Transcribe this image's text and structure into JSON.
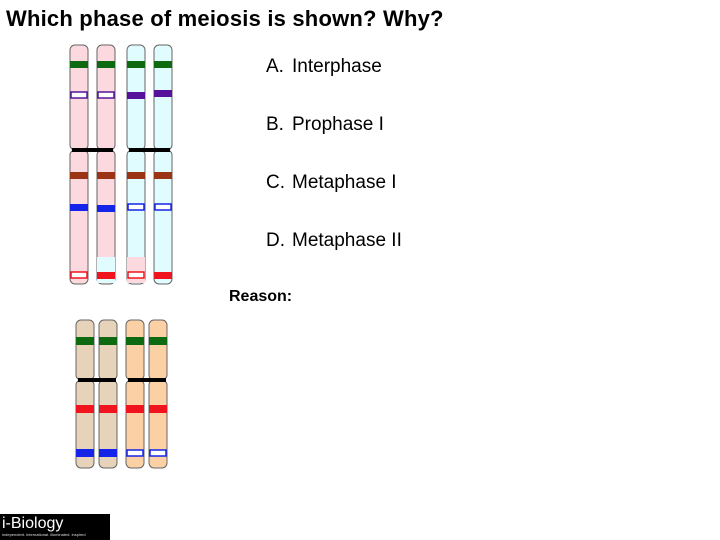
{
  "title": "Which phase of meiosis is shown? Why?",
  "options": [
    {
      "letter": "A.",
      "text": "Interphase"
    },
    {
      "letter": "B.",
      "text": "Prophase I"
    },
    {
      "letter": "C.",
      "text": "Metaphase I"
    },
    {
      "letter": "D.",
      "text": "Metaphase II"
    }
  ],
  "reason_label": "Reason:",
  "logo": {
    "name": "i-Biology",
    "tagline": "independent. international. illuminated. inspired"
  },
  "colors": {
    "pink": "#fcd9df",
    "cyan": "#e1fcff",
    "tan": "#e7d3b9",
    "peach": "#fcd0a5",
    "green": "#0d6a10",
    "purple": "#56129a",
    "brown": "#9b3414",
    "blue": "#1424e8",
    "red": "#f0141e"
  },
  "chromosome_pairs": [
    {
      "name": "large-pair",
      "chromatids": [
        "pink",
        "pink",
        "cyan",
        "cyan"
      ]
    },
    {
      "name": "small-pair",
      "chromatids": [
        "tan",
        "tan",
        "peach",
        "peach"
      ]
    }
  ]
}
